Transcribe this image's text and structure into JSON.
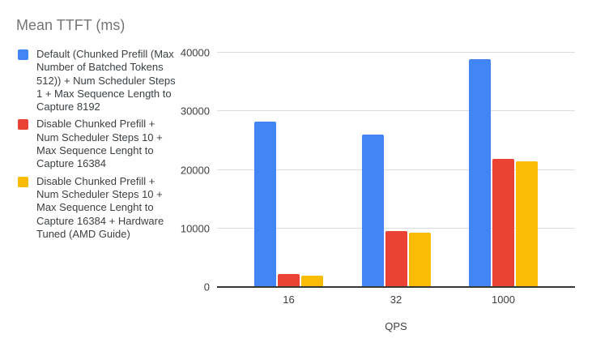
{
  "title": "Mean TTFT (ms)",
  "chart_data": {
    "type": "bar",
    "title": "Mean TTFT (ms)",
    "categories": [
      "16",
      "32",
      "1000"
    ],
    "series": [
      {
        "name": "Default (Chunked Prefill (Max Number of Batched Tokens 512)) + Num Scheduler Steps 1 + Max Sequence Length to Capture 8192",
        "color": "#4285F4",
        "values": [
          28300,
          26000,
          38900
        ]
      },
      {
        "name": "Disable Chunked Prefill + Num Scheduler Steps 10 + Max Sequence Lenght to Capture 16384",
        "color": "#EA4335",
        "values": [
          2200,
          9500,
          21900
        ]
      },
      {
        "name": "Disable Chunked Prefill + Num Scheduler Steps 10 + Max Sequence Lenght to Capture 16384 + Hardware Tuned (AMD Guide)",
        "color": "#FBBC04",
        "values": [
          2000,
          9300,
          21500
        ]
      }
    ],
    "xlabel": "QPS",
    "ylabel": "",
    "ylim": [
      0,
      40000
    ],
    "yticks": [
      0,
      10000,
      20000,
      30000,
      40000
    ],
    "grid": true,
    "legend_position": "left"
  },
  "colors": {
    "background": "#ffffff",
    "title_text": "#757575",
    "body_text": "#3c4043",
    "gridline": "#dadce0",
    "axis_line": "#383838"
  }
}
